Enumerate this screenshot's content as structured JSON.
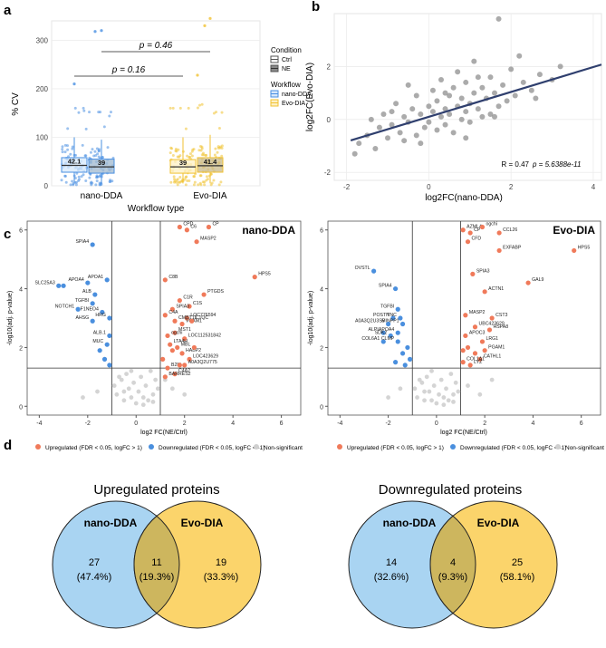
{
  "colors": {
    "blue": "#4a90e2",
    "yellow": "#f1c232",
    "up": "#f07a5a",
    "down": "#4a8fde",
    "ns": "#cfcfcf",
    "venn_left": "#a9d4f2",
    "venn_right": "#fbd46b",
    "venn_overlap": "#cdb65e",
    "reg_line": "#2f3f6e",
    "scatter": "#8f8f8f"
  },
  "chart_data": [
    {
      "panel": "a",
      "type": "box",
      "ylabel": "% CV",
      "xlabel": "Workflow type",
      "yticks": [
        "0",
        "100",
        "200",
        "300"
      ],
      "ylim": [
        0,
        340
      ],
      "categories": [
        "nano-DDA",
        "Evo-DIA"
      ],
      "boxes": [
        {
          "workflow": "nano-DDA",
          "condition": "Ctrl",
          "median": 42.1,
          "q1": 28,
          "q3": 58,
          "wlo": 5,
          "whi": 100,
          "label": "42.1"
        },
        {
          "workflow": "nano-DDA",
          "condition": "NE",
          "median": 39,
          "q1": 26,
          "q3": 55,
          "wlo": 5,
          "whi": 95,
          "label": "39"
        },
        {
          "workflow": "Evo-DIA",
          "condition": "Ctrl",
          "median": 39,
          "q1": 26,
          "q3": 54,
          "wlo": 5,
          "whi": 100,
          "label": "39"
        },
        {
          "workflow": "Evo-DIA",
          "condition": "NE",
          "median": 41.4,
          "q1": 28,
          "q3": 58,
          "wlo": 5,
          "whi": 105,
          "label": "41.4"
        }
      ],
      "pvalues": [
        "p = 0.16",
        "p = 0.46"
      ],
      "legend": {
        "condition_title": "Condition",
        "conditions": [
          "Ctrl",
          "NE"
        ],
        "workflow_title": "Workflow",
        "workflows": [
          "nano-DDA",
          "Evo-DIA"
        ]
      }
    },
    {
      "panel": "b",
      "type": "scatter",
      "xlabel": "log2FC(nano-DDA)",
      "ylabel": "log2FC(Evo-DIA)",
      "xlim": [
        -2.3,
        4.2
      ],
      "ylim": [
        -2.3,
        4
      ],
      "xticks": [
        "-2",
        "0",
        "2",
        "4"
      ],
      "yticks": [
        "-2",
        "0",
        "2"
      ],
      "xtick_values": [
        -2,
        0,
        2,
        4
      ],
      "ytick_values": [
        -2,
        0,
        2
      ],
      "regression": {
        "slope": 0.47,
        "intercept": 0.1
      },
      "annotation_r": "R = 0.47",
      "annotation_p": "p = 5.6388e-11",
      "points": [
        [
          -1.8,
          -1.3
        ],
        [
          -1.7,
          -0.9
        ],
        [
          -1.5,
          -0.6
        ],
        [
          -1.3,
          -1.1
        ],
        [
          -1.2,
          -0.3
        ],
        [
          -1.1,
          0.2
        ],
        [
          -1.0,
          -0.7
        ],
        [
          -0.9,
          -0.2
        ],
        [
          -0.8,
          0.6
        ],
        [
          -0.7,
          -0.5
        ],
        [
          -0.6,
          0.1
        ],
        [
          -0.5,
          1.3
        ],
        [
          -0.5,
          -0.1
        ],
        [
          -0.4,
          0.4
        ],
        [
          -0.3,
          -0.6
        ],
        [
          -0.3,
          0.9
        ],
        [
          -0.2,
          0.2
        ],
        [
          -0.1,
          -0.3
        ],
        [
          0.0,
          0.5
        ],
        [
          0.0,
          -0.1
        ],
        [
          0.1,
          1.1
        ],
        [
          0.1,
          0.3
        ],
        [
          0.2,
          -0.4
        ],
        [
          0.2,
          0.7
        ],
        [
          0.3,
          0.1
        ],
        [
          0.3,
          1.5
        ],
        [
          0.4,
          0.4
        ],
        [
          0.4,
          -0.2
        ],
        [
          0.5,
          0.9
        ],
        [
          0.5,
          0.2
        ],
        [
          0.6,
          1.2
        ],
        [
          0.6,
          -0.5
        ],
        [
          0.7,
          0.5
        ],
        [
          0.7,
          1.8
        ],
        [
          0.8,
          0.0
        ],
        [
          0.8,
          0.8
        ],
        [
          0.9,
          1.4
        ],
        [
          0.9,
          0.3
        ],
        [
          1.0,
          0.6
        ],
        [
          1.0,
          -0.1
        ],
        [
          1.1,
          1.0
        ],
        [
          1.1,
          2.2
        ],
        [
          1.2,
          0.4
        ],
        [
          1.3,
          1.2
        ],
        [
          1.3,
          0.1
        ],
        [
          1.4,
          0.8
        ],
        [
          1.5,
          1.6
        ],
        [
          1.5,
          0.2
        ],
        [
          1.6,
          1.0
        ],
        [
          1.7,
          0.5
        ],
        [
          1.7,
          3.8
        ],
        [
          1.8,
          1.3
        ],
        [
          1.9,
          0.7
        ],
        [
          2.0,
          1.9
        ],
        [
          2.1,
          0.9
        ],
        [
          2.3,
          1.4
        ],
        [
          2.5,
          1.1
        ],
        [
          2.7,
          1.7
        ],
        [
          3.0,
          1.5
        ],
        [
          3.2,
          2.0
        ],
        [
          -1.4,
          0.0
        ],
        [
          -0.9,
          0.3
        ],
        [
          -0.2,
          -0.9
        ],
        [
          0.4,
          1.0
        ],
        [
          1.2,
          1.6
        ],
        [
          2.2,
          2.4
        ],
        [
          -0.6,
          -0.8
        ],
        [
          0.9,
          -0.7
        ],
        [
          1.6,
          0.1
        ],
        [
          2.6,
          0.8
        ]
      ]
    },
    {
      "panel": "c",
      "type": "scatter",
      "title": "nano-DDA",
      "xlabel": "log2 FC(NE/Ctrl)",
      "ylabel": "-log10(adj. p-value)",
      "xlim": [
        -4.5,
        6.8
      ],
      "ylim": [
        -0.3,
        6.3
      ],
      "xticks": [
        "-4",
        "-2",
        "0",
        "2",
        "4",
        "6"
      ],
      "yticks": [
        "0",
        "2",
        "4",
        "6"
      ],
      "xtick_values": [
        -4,
        -2,
        0,
        2,
        4,
        6
      ],
      "ytick_values": [
        0,
        2,
        4,
        6
      ],
      "vlines": [
        -1,
        1
      ],
      "hline": 1.3,
      "up": [
        {
          "x": 1.8,
          "y": 6.1,
          "label": "CPD"
        },
        {
          "x": 2.1,
          "y": 6.0,
          "label": "C6"
        },
        {
          "x": 3.0,
          "y": 6.1,
          "label": "CP"
        },
        {
          "x": 2.5,
          "y": 5.6,
          "label": "MASP2"
        },
        {
          "x": 1.2,
          "y": 4.3,
          "label": "C8B"
        },
        {
          "x": 2.8,
          "y": 3.8,
          "label": "PTGDS"
        },
        {
          "x": 4.9,
          "y": 4.4,
          "label": "HPS5"
        },
        {
          "x": 1.8,
          "y": 3.6,
          "label": "C1R"
        },
        {
          "x": 2.2,
          "y": 3.4,
          "label": "C1S"
        },
        {
          "x": 1.5,
          "y": 3.3,
          "label": "SPIA3"
        },
        {
          "x": 1.2,
          "y": 3.1,
          "label": "C4A"
        },
        {
          "x": 2.1,
          "y": 3.0,
          "label": "LOC776594"
        },
        {
          "x": 1.6,
          "y": 2.9,
          "label": "CMBT1L"
        },
        {
          "x": 1.9,
          "y": 2.8,
          "label": "VCAM1"
        },
        {
          "x": 2.3,
          "y": 2.9,
          "label": "C1QC"
        },
        {
          "x": 1.6,
          "y": 2.5,
          "label": "MST1"
        },
        {
          "x": 1.3,
          "y": 2.4,
          "label": "ogchi"
        },
        {
          "x": 2.0,
          "y": 2.3,
          "label": "LOC112531842"
        },
        {
          "x": 1.4,
          "y": 2.1,
          "label": "LTA4H"
        },
        {
          "x": 1.7,
          "y": 2.0,
          "label": "MBL"
        },
        {
          "x": 1.9,
          "y": 1.8,
          "label": "HABP2"
        },
        {
          "x": 2.2,
          "y": 1.6,
          "label": "LOC423629"
        },
        {
          "x": 2.0,
          "y": 1.4,
          "label": "A0A3Q2U775"
        },
        {
          "x": 1.3,
          "y": 1.3,
          "label": "B2M"
        },
        {
          "x": 1.6,
          "y": 1.1,
          "label": "C4A2"
        },
        {
          "x": 1.2,
          "y": 1.0,
          "label": "BARRES2"
        },
        {
          "x": 1.5,
          "y": 1.9,
          "label": ""
        },
        {
          "x": 1.1,
          "y": 1.6,
          "label": ""
        },
        {
          "x": 2.4,
          "y": 2.0,
          "label": ""
        },
        {
          "x": 1.8,
          "y": 1.4,
          "label": ""
        }
      ],
      "down": [
        {
          "x": -1.8,
          "y": 5.5,
          "label": "SPIA4"
        },
        {
          "x": -3.2,
          "y": 4.1,
          "label": "SLC25A3"
        },
        {
          "x": -3.0,
          "y": 4.1,
          "label": ""
        },
        {
          "x": -2.0,
          "y": 4.2,
          "label": "APOA4"
        },
        {
          "x": -1.2,
          "y": 4.3,
          "label": "APOA1"
        },
        {
          "x": -1.7,
          "y": 3.8,
          "label": "ALB"
        },
        {
          "x": -1.8,
          "y": 3.5,
          "label": "TGFBI"
        },
        {
          "x": -2.4,
          "y": 3.3,
          "label": "NOTCH1"
        },
        {
          "x": -1.4,
          "y": 3.2,
          "label": "F1NEO4"
        },
        {
          "x": -1.8,
          "y": 2.9,
          "label": "AHSG"
        },
        {
          "x": -1.1,
          "y": 3.0,
          "label": "HRG"
        },
        {
          "x": -1.1,
          "y": 2.4,
          "label": "ALB.1"
        },
        {
          "x": -1.2,
          "y": 2.1,
          "label": "MUC"
        },
        {
          "x": -1.5,
          "y": 1.9,
          "label": ""
        },
        {
          "x": -1.3,
          "y": 1.6,
          "label": ""
        },
        {
          "x": -1.1,
          "y": 1.4,
          "label": ""
        }
      ],
      "ns": [
        [
          -0.8,
          0.4
        ],
        [
          -0.6,
          0.9
        ],
        [
          -0.5,
          0.2
        ],
        [
          -0.4,
          1.1
        ],
        [
          -0.3,
          0.6
        ],
        [
          -0.2,
          0.3
        ],
        [
          -0.1,
          0.8
        ],
        [
          0,
          0.1
        ],
        [
          0.1,
          0.5
        ],
        [
          0.2,
          1.0
        ],
        [
          0.3,
          0.3
        ],
        [
          0.4,
          0.7
        ],
        [
          0.5,
          0.2
        ],
        [
          0.6,
          1.2
        ],
        [
          0.7,
          0.4
        ],
        [
          0.8,
          0.9
        ],
        [
          -0.7,
          1.0
        ],
        [
          0.9,
          0.6
        ],
        [
          -0.9,
          0.7
        ],
        [
          -0.2,
          1.2
        ],
        [
          0.3,
          0.05
        ],
        [
          -0.5,
          0.5
        ],
        [
          0.7,
          0.15
        ],
        [
          1.5,
          0.6
        ],
        [
          2.0,
          0.4
        ],
        [
          -1.6,
          0.5
        ],
        [
          -2.2,
          0.3
        ],
        [
          1.2,
          0.9
        ]
      ]
    },
    {
      "panel": "c",
      "type": "scatter",
      "title": "Evo-DIA",
      "xlabel": "log2 FC(NE/Ctrl)",
      "ylabel": "-log10(adj. p-value)",
      "xlim": [
        -4.5,
        6.8
      ],
      "ylim": [
        -0.3,
        6.3
      ],
      "xticks": [
        "-4",
        "-2",
        "0",
        "2",
        "4",
        "6"
      ],
      "yticks": [
        "0",
        "2",
        "4",
        "6"
      ],
      "xtick_values": [
        -4,
        -2,
        0,
        2,
        4,
        6
      ],
      "ytick_values": [
        0,
        2,
        4,
        6
      ],
      "vlines": [
        -1,
        1
      ],
      "hline": 1.3,
      "up": [
        {
          "x": 1.1,
          "y": 6.0,
          "label": "AZML4"
        },
        {
          "x": 1.4,
          "y": 5.9,
          "label": "CP"
        },
        {
          "x": 1.9,
          "y": 6.1,
          "label": "ogchi"
        },
        {
          "x": 1.3,
          "y": 5.6,
          "label": "CFD"
        },
        {
          "x": 2.6,
          "y": 5.9,
          "label": "CCL26"
        },
        {
          "x": 2.6,
          "y": 5.3,
          "label": "EXFABP"
        },
        {
          "x": 5.7,
          "y": 5.3,
          "label": "HPS5"
        },
        {
          "x": 1.5,
          "y": 4.5,
          "label": "SPIA3"
        },
        {
          "x": 3.8,
          "y": 4.2,
          "label": "GAL9"
        },
        {
          "x": 2.0,
          "y": 3.9,
          "label": "ACTN1"
        },
        {
          "x": 1.2,
          "y": 3.1,
          "label": "MASP2"
        },
        {
          "x": 2.3,
          "y": 3.0,
          "label": "CST3"
        },
        {
          "x": 1.6,
          "y": 2.7,
          "label": "UBC423629"
        },
        {
          "x": 2.2,
          "y": 2.6,
          "label": "HSPA8"
        },
        {
          "x": 1.2,
          "y": 2.4,
          "label": "APOC3"
        },
        {
          "x": 1.9,
          "y": 2.2,
          "label": "LRG1"
        },
        {
          "x": 2.0,
          "y": 1.9,
          "label": "PGAM1"
        },
        {
          "x": 1.8,
          "y": 1.6,
          "label": "CATHL1"
        },
        {
          "x": 1.1,
          "y": 1.5,
          "label": "COL1A1"
        },
        {
          "x": 1.4,
          "y": 1.4,
          "label": "LYZ"
        },
        {
          "x": 1.3,
          "y": 2.0,
          "label": ""
        },
        {
          "x": 1.6,
          "y": 1.8,
          "label": ""
        },
        {
          "x": 1.1,
          "y": 1.9,
          "label": ""
        }
      ],
      "down": [
        {
          "x": -2.6,
          "y": 4.6,
          "label": "OVSTL"
        },
        {
          "x": -1.7,
          "y": 4.0,
          "label": "SPIA4"
        },
        {
          "x": -1.6,
          "y": 3.3,
          "label": "TGFBI"
        },
        {
          "x": -1.8,
          "y": 3.0,
          "label": "POSTN"
        },
        {
          "x": -1.5,
          "y": 3.0,
          "label": "TNC"
        },
        {
          "x": -1.4,
          "y": 2.8,
          "label": "MINPP1"
        },
        {
          "x": -2.0,
          "y": 2.8,
          "label": "A0A3Q2U3S5"
        },
        {
          "x": -1.6,
          "y": 2.5,
          "label": "APOA4"
        },
        {
          "x": -2.2,
          "y": 2.5,
          "label": "ALPL"
        },
        {
          "x": -1.9,
          "y": 2.4,
          "label": "SDK2"
        },
        {
          "x": -2.2,
          "y": 2.2,
          "label": "COL6A1"
        },
        {
          "x": -1.6,
          "y": 2.2,
          "label": "CLMP"
        },
        {
          "x": -1.2,
          "y": 2.0,
          "label": ""
        },
        {
          "x": -1.4,
          "y": 1.8,
          "label": ""
        },
        {
          "x": -1.1,
          "y": 1.6,
          "label": ""
        },
        {
          "x": -1.7,
          "y": 1.5,
          "label": ""
        },
        {
          "x": -1.3,
          "y": 1.4,
          "label": ""
        }
      ],
      "ns": [
        [
          -0.8,
          0.3
        ],
        [
          -0.6,
          0.8
        ],
        [
          -0.5,
          0.2
        ],
        [
          -0.4,
          1.0
        ],
        [
          -0.3,
          0.5
        ],
        [
          -0.2,
          0.2
        ],
        [
          -0.1,
          0.7
        ],
        [
          0,
          0.1
        ],
        [
          0.1,
          0.4
        ],
        [
          0.2,
          0.9
        ],
        [
          0.3,
          0.3
        ],
        [
          0.4,
          0.6
        ],
        [
          0.5,
          0.2
        ],
        [
          0.6,
          1.1
        ],
        [
          0.7,
          0.4
        ],
        [
          0.8,
          0.8
        ],
        [
          -0.7,
          0.9
        ],
        [
          0.9,
          0.5
        ],
        [
          -0.9,
          0.6
        ],
        [
          -0.2,
          1.2
        ],
        [
          0.3,
          0.05
        ],
        [
          -0.5,
          0.5
        ],
        [
          0.7,
          0.15
        ],
        [
          1.3,
          0.7
        ],
        [
          1.8,
          0.4
        ],
        [
          -1.5,
          0.6
        ],
        [
          -2.0,
          0.3
        ],
        [
          2.3,
          0.9
        ]
      ]
    },
    {
      "panel": "d",
      "type": "venn",
      "title": "Upregulated proteins",
      "sets": [
        "nano-DDA",
        "Evo-DIA"
      ],
      "counts": [
        "27",
        "11",
        "19"
      ],
      "percents": [
        "(47.4%)",
        "(19.3%)",
        "(33.3%)"
      ]
    },
    {
      "panel": "d",
      "type": "venn",
      "title": "Downregulated proteins",
      "sets": [
        "nano-DDA",
        "Evo-DIA"
      ],
      "counts": [
        "14",
        "4",
        "25"
      ],
      "percents": [
        "(32.6%)",
        "(9.3%)",
        "(58.1%)"
      ]
    }
  ],
  "volcano_legend": {
    "up": "Upregulated (FDR < 0.05, logFC > 1)",
    "down": "Downregulated (FDR < 0.05, logFC < -1)",
    "ns": "Non-significant"
  },
  "panel_labels": {
    "a": "a",
    "b": "b",
    "c": "c",
    "d": "d"
  }
}
